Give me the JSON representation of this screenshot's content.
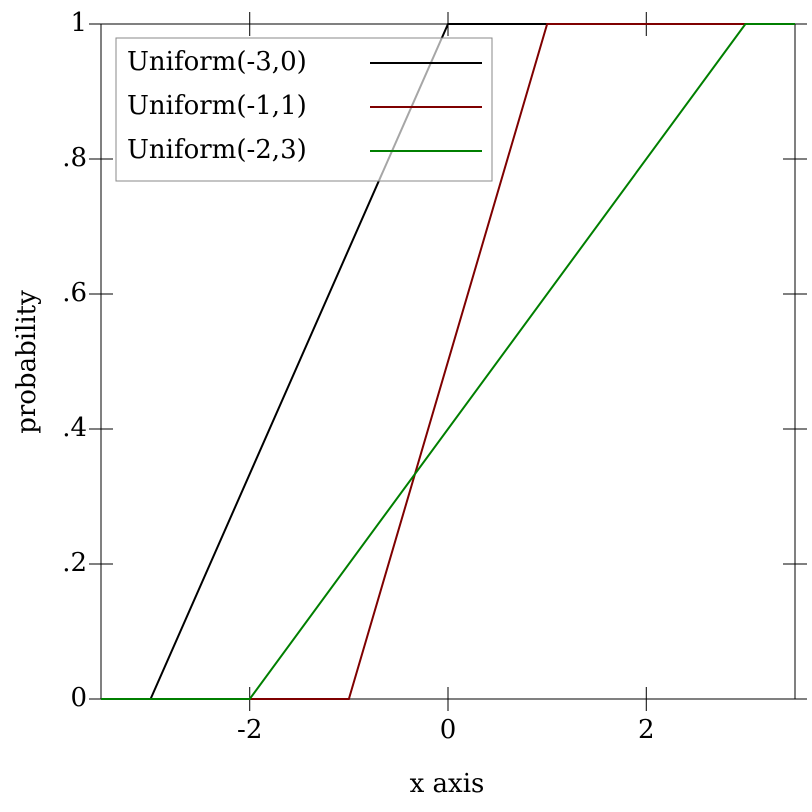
{
  "chart_data": {
    "type": "line",
    "xlabel": "x axis",
    "ylabel": "probability",
    "xlim": [
      -3.5,
      3.5
    ],
    "ylim": [
      0,
      1
    ],
    "xticks": [
      -2,
      0,
      2
    ],
    "yticks": [
      0,
      {
        "value": 0.2,
        "label": ".2"
      },
      {
        "value": 0.4,
        "label": ".4"
      },
      {
        "value": 0.6,
        "label": ".6"
      },
      {
        "value": 0.8,
        "label": ".8"
      },
      1
    ],
    "legend": "top-left",
    "grid": false,
    "series": [
      {
        "name": "Uniform(-3,0)",
        "color": "#000000",
        "x": [
          -3.5,
          -3,
          0,
          3.5
        ],
        "values": [
          0,
          0,
          1,
          1
        ]
      },
      {
        "name": "Uniform(-1,1)",
        "color": "#7f0000",
        "x": [
          -3.5,
          -1,
          1,
          3.5
        ],
        "values": [
          0,
          0,
          1,
          1
        ]
      },
      {
        "name": "Uniform(-2,3)",
        "color": "#007f00",
        "x": [
          -3.5,
          -2,
          3,
          3.5
        ],
        "values": [
          0,
          0,
          1,
          1
        ]
      }
    ]
  }
}
